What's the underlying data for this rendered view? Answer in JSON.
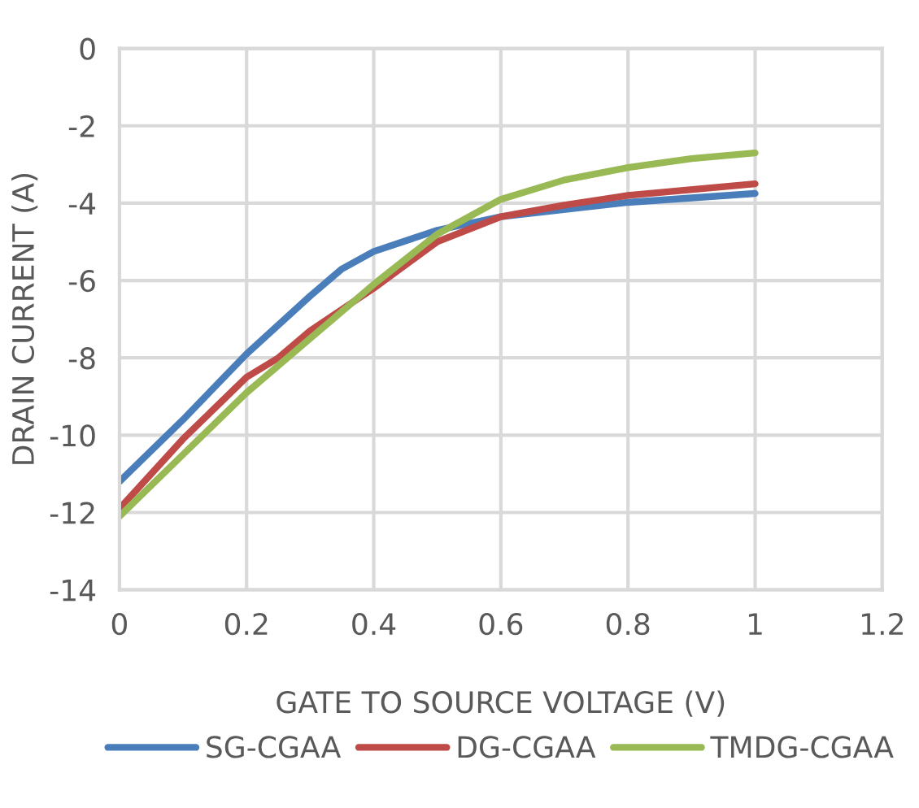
{
  "chart_data": {
    "type": "line",
    "xlabel": "GATE TO SOURCE VOLTAGE (V)",
    "ylabel": "DRAIN CURRENT (A)",
    "xlim": [
      0,
      1.2
    ],
    "xticks": [
      0,
      0.2,
      0.4,
      0.6,
      0.8,
      1,
      1.2
    ],
    "ylim": [
      -14,
      0
    ],
    "yticks": [
      -14,
      -12,
      -10,
      -8,
      -6,
      -4,
      -2,
      0
    ],
    "grid": true,
    "legend": "bottom",
    "marker": "none",
    "line_style": "solid",
    "series": [
      {
        "name": "SG-CGAA",
        "color": "#4a7ebb",
        "x": [
          0,
          0.1,
          0.2,
          0.3,
          0.35,
          0.4,
          0.5,
          0.6,
          0.8,
          1
        ],
        "values": [
          -11.2,
          -9.6,
          -7.9,
          -6.4,
          -5.7,
          -5.25,
          -4.7,
          -4.35,
          -3.98,
          -3.75
        ]
      },
      {
        "name": "DG-CGAA",
        "color": "#be4b48",
        "x": [
          0,
          0.1,
          0.2,
          0.25,
          0.3,
          0.4,
          0.5,
          0.6,
          0.7,
          0.8,
          1
        ],
        "values": [
          -11.9,
          -10.1,
          -8.5,
          -8.0,
          -7.3,
          -6.2,
          -5.0,
          -4.35,
          -4.05,
          -3.8,
          -3.5
        ]
      },
      {
        "name": "TMDG-CGAA",
        "color": "#98b954",
        "x": [
          0,
          0.1,
          0.2,
          0.3,
          0.4,
          0.5,
          0.6,
          0.7,
          0.8,
          0.9,
          1
        ],
        "values": [
          -12.1,
          -10.5,
          -8.9,
          -7.5,
          -6.1,
          -4.8,
          -3.9,
          -3.4,
          -3.08,
          -2.85,
          -2.7
        ]
      }
    ]
  }
}
